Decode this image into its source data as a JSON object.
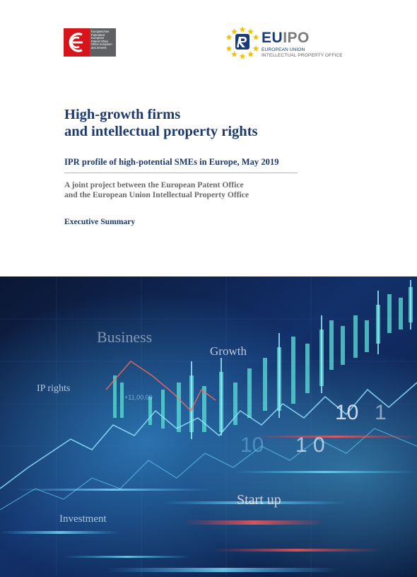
{
  "logos": {
    "epo": {
      "lines": [
        "Europäisches",
        "Patentamt",
        "European",
        "Patent Office",
        "Office européen",
        "des brevets"
      ],
      "color": "#d7141a"
    },
    "euipo": {
      "name_part1": "EU",
      "name_part2": "IPO",
      "subtitle_line1": "EUROPEAN UNION",
      "subtitle_line2": "INTELLECTUAL PROPERTY OFFICE"
    }
  },
  "title_line1": "High-growth firms",
  "title_line2": "and intellectual property rights",
  "subtitle": "IPR profile of high-potential SMEs in Europe, May 2019",
  "joint_line1": "A joint project between the European Patent Office",
  "joint_line2": "and the European Union Intellectual Property Office",
  "section_label": "Executive Summary",
  "cover_words": {
    "business": "Business",
    "growth": "Growth",
    "ip_rights": "IP rights",
    "number": "+11,00.00",
    "digits_a": "10",
    "digits_b": "1",
    "digits_c": "10",
    "digits_d": "1 0",
    "startup": "Start up",
    "investment": "Investment"
  },
  "colors": {
    "title": "#1d3a6d",
    "epo_red": "#d7141a",
    "euipo_blue": "#1a3a78"
  }
}
